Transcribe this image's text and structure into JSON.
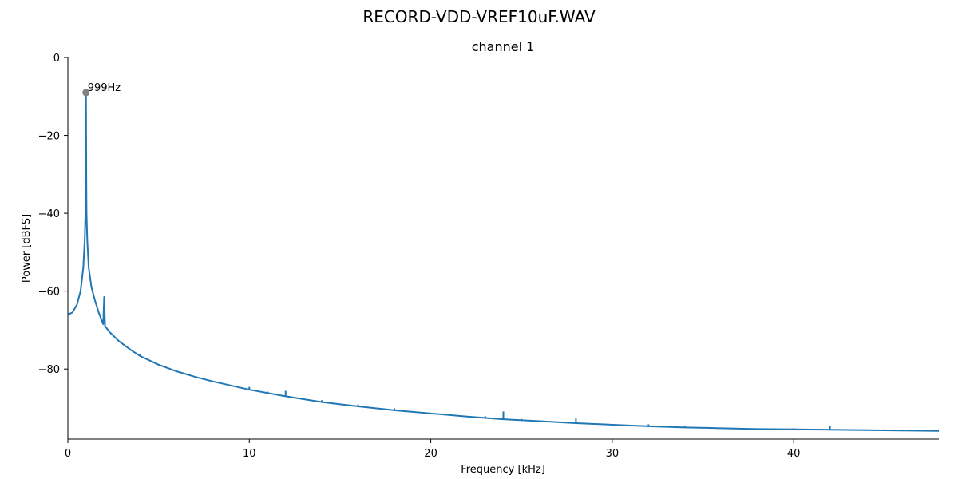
{
  "figure_title": "RECORD-VDD-VREF10uF.WAV",
  "chart_data": {
    "type": "line",
    "title": "channel 1",
    "xlabel": "Frequency [kHz]",
    "ylabel": "Power [dBFS]",
    "xlim": [
      0,
      48
    ],
    "ylim": [
      -98,
      0
    ],
    "xticks": [
      0,
      10,
      20,
      30,
      40
    ],
    "yticks": [
      0,
      -20,
      -40,
      -60,
      -80
    ],
    "xtick_labels": [
      "0",
      "10",
      "20",
      "30",
      "40"
    ],
    "ytick_labels": [
      "0",
      "−20",
      "−40",
      "−60",
      "−80"
    ],
    "grid": false,
    "line_color": "#1f77b4",
    "marker_color": "#808080",
    "series": [
      {
        "x": [
          0,
          0.25,
          0.5,
          0.7,
          0.85,
          0.93,
          0.97,
          0.985,
          0.999,
          1.015,
          1.03,
          1.07,
          1.15,
          1.3,
          1.5,
          1.7,
          1.95,
          2,
          2.05,
          2.3,
          2.8,
          3.5,
          4,
          5,
          6,
          7,
          8,
          10,
          12,
          14,
          16,
          18,
          20,
          22,
          24,
          26,
          28,
          30,
          32,
          34,
          36,
          38,
          40,
          42,
          44,
          46,
          48
        ],
        "y": [
          -66,
          -65.5,
          -63.5,
          -60,
          -54,
          -47,
          -40,
          -30,
          -9,
          -30,
          -40,
          -47,
          -54,
          -59,
          -62.5,
          -65.5,
          -68.5,
          -61.5,
          -69,
          -70.5,
          -72.8,
          -75.2,
          -76.7,
          -78.9,
          -80.6,
          -82,
          -83.2,
          -85.3,
          -87,
          -88.5,
          -89.6,
          -90.6,
          -91.4,
          -92.2,
          -92.9,
          -93.4,
          -93.9,
          -94.3,
          -94.7,
          -95,
          -95.2,
          -95.4,
          -95.5,
          -95.6,
          -95.7,
          -95.8,
          -95.9
        ]
      }
    ],
    "spurs": [
      {
        "x": 4,
        "top": -76.2,
        "base": -76.7
      },
      {
        "x": 10,
        "top": -84.6,
        "base": -85.3
      },
      {
        "x": 11,
        "top": -85.8,
        "base": -86.2
      },
      {
        "x": 12,
        "top": -85.6,
        "base": -87
      },
      {
        "x": 14,
        "top": -88,
        "base": -88.5
      },
      {
        "x": 16,
        "top": -89.1,
        "base": -89.6
      },
      {
        "x": 18,
        "top": -90.1,
        "base": -90.6
      },
      {
        "x": 23,
        "top": -92.1,
        "base": -92.55
      },
      {
        "x": 24,
        "top": -90.9,
        "base": -92.9
      },
      {
        "x": 25,
        "top": -92.8,
        "base": -93.15
      },
      {
        "x": 28,
        "top": -92.7,
        "base": -93.9
      },
      {
        "x": 32,
        "top": -94.2,
        "base": -94.7
      },
      {
        "x": 34,
        "top": -94.5,
        "base": -95
      },
      {
        "x": 40,
        "top": -95.2,
        "base": -95.6
      },
      {
        "x": 42,
        "top": -94.6,
        "base": -95.7
      },
      {
        "x": 44,
        "top": -95.5,
        "base": -95.8
      },
      {
        "x": 45,
        "top": -95.5,
        "base": -95.85
      }
    ],
    "annotations": [
      {
        "x": 0.999,
        "y": -9,
        "text": "999Hz"
      }
    ]
  }
}
